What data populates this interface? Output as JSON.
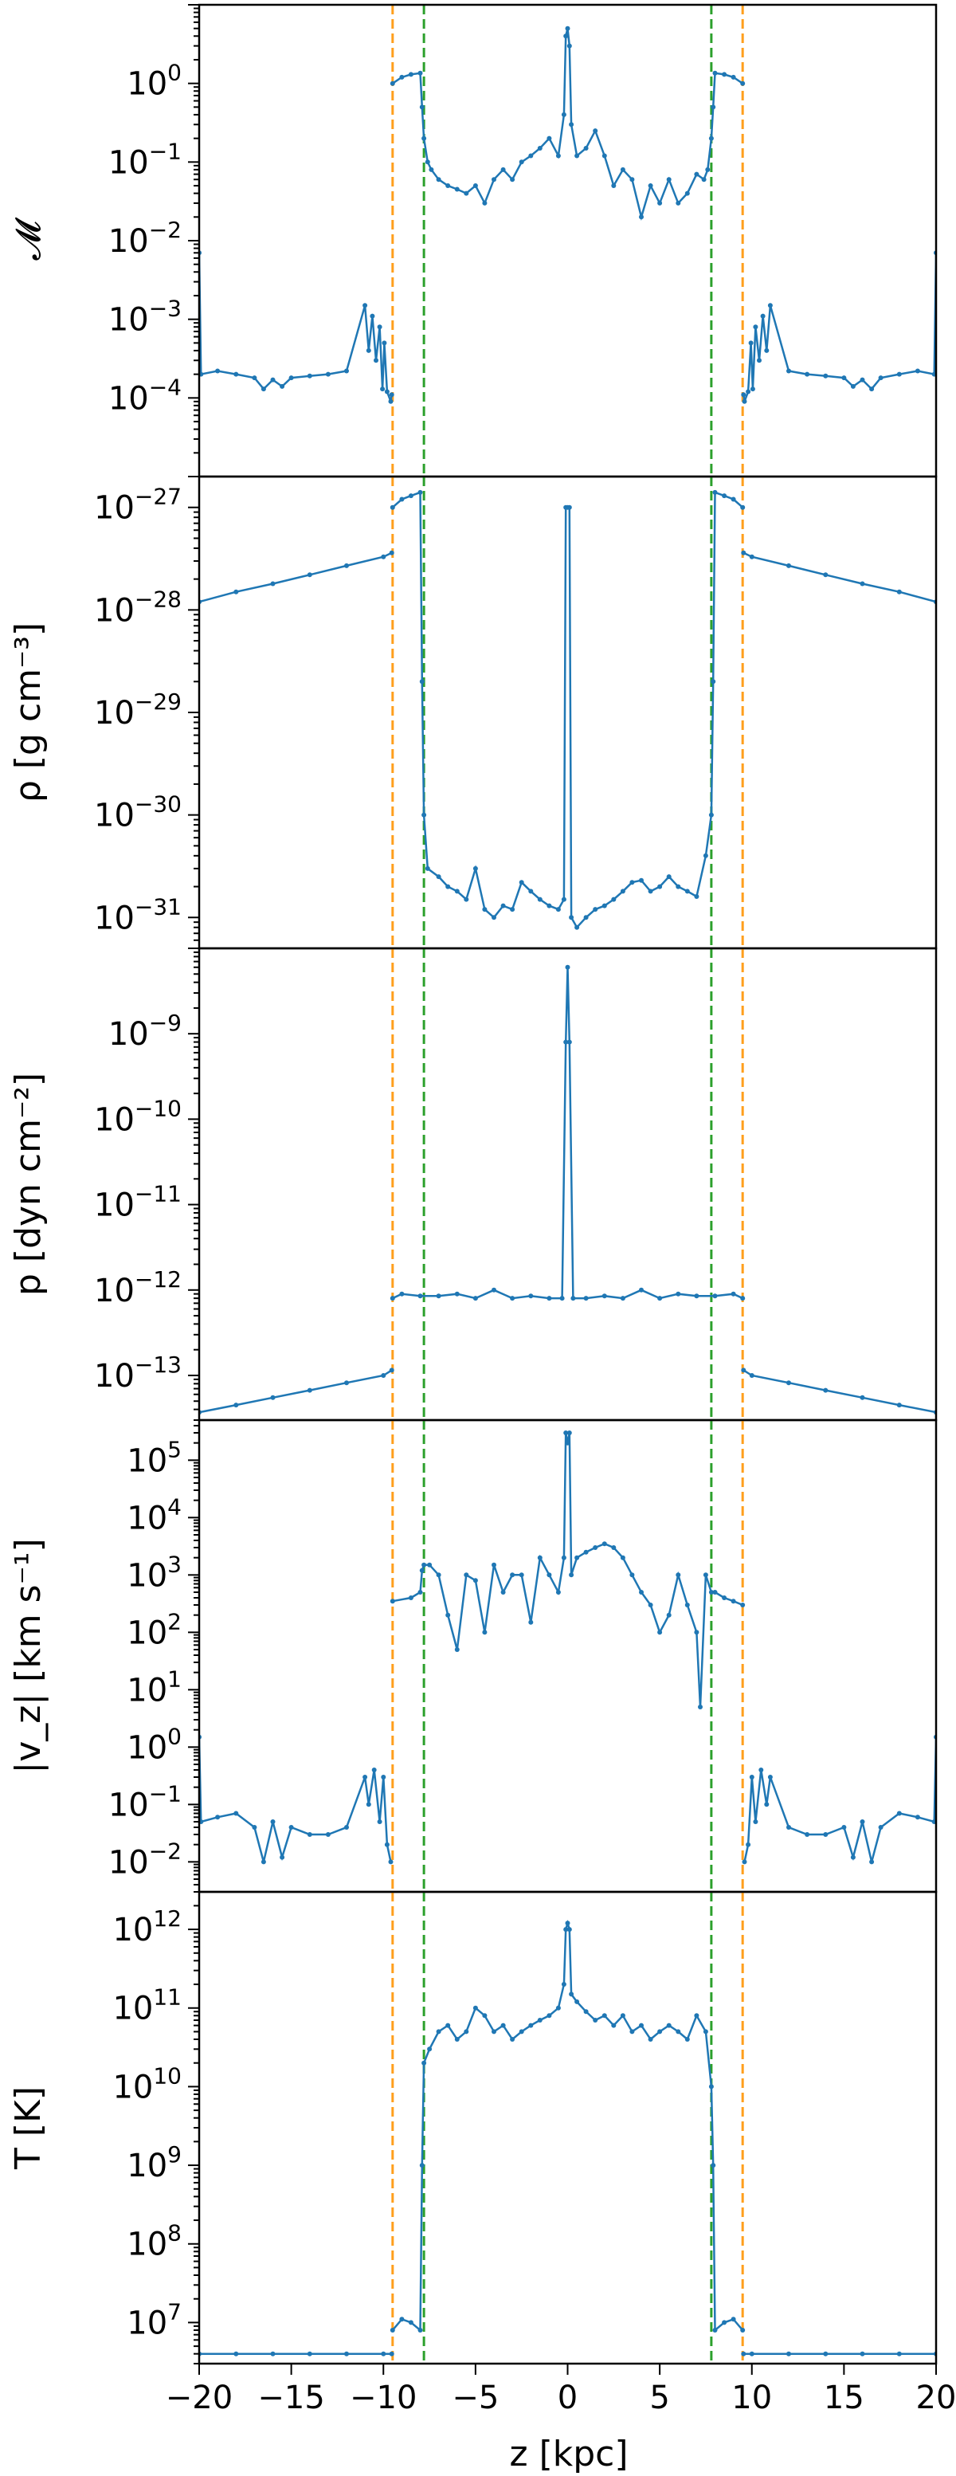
{
  "chart_data": {
    "type": "line",
    "layout": "5 vertically stacked panels sharing x axis",
    "xlabel": "z [kpc]",
    "xlim": [
      -20,
      20
    ],
    "x_ticks": [
      -20,
      -15,
      -10,
      -5,
      0,
      5,
      10,
      15,
      20
    ],
    "x_tick_labels": [
      "−20",
      "−15",
      "−10",
      "−5",
      "0",
      "5",
      "10",
      "15",
      "20"
    ],
    "line_color": "#1f77b4",
    "markers": "small dots",
    "vlines": [
      {
        "x": -9.5,
        "color": "#ff9f1c",
        "style": "dashed"
      },
      {
        "x": -7.8,
        "color": "#2ca02c",
        "style": "dashed"
      },
      {
        "x": 7.8,
        "color": "#2ca02c",
        "style": "dashed"
      },
      {
        "x": 9.5,
        "color": "#ff9f1c",
        "style": "dashed"
      }
    ],
    "panels": [
      {
        "ylabel": "𝓜",
        "yscale": "log",
        "ylim": [
          1e-05,
          10
        ],
        "y_tick_exps": [
          "0",
          "-1",
          "-2",
          "-3",
          "-4"
        ],
        "y_tick_values": [
          1,
          0.1,
          0.01,
          0.001,
          0.0001
        ],
        "series": [
          {
            "x": [
              -20,
              -19.9,
              -19,
              -18,
              -17,
              -16.5,
              -16,
              -15.5,
              -15,
              -14,
              -13,
              -12,
              -11,
              -10.8,
              -10.6,
              -10.4,
              -10.2,
              -10.05,
              -9.95,
              -9.8,
              -9.6,
              -9.55
            ],
            "y": [
              0.007,
              0.0002,
              0.00022,
              0.0002,
              0.00018,
              0.00013,
              0.00017,
              0.00014,
              0.00018,
              0.00019,
              0.0002,
              0.00022,
              0.0015,
              0.0004,
              0.0011,
              0.0003,
              0.0008,
              0.00013,
              0.0005,
              0.00012,
              9e-05,
              0.00011
            ]
          },
          {
            "x": [
              -9.5,
              -9.0,
              -8.5,
              -8.0,
              -7.9,
              -7.8,
              -7.6,
              -7.4,
              -7,
              -6.5,
              -6,
              -5.5,
              -5,
              -4.5,
              -4,
              -3.5,
              -3,
              -2.5,
              -2,
              -1.5,
              -1,
              -0.5,
              -0.2,
              -0.1,
              0,
              0.1,
              0.2,
              0.5,
              1,
              1.5,
              2,
              2.5,
              3,
              3.5,
              4,
              4.5,
              5,
              5.5,
              6,
              6.5,
              7,
              7.4,
              7.6,
              7.8,
              7.9,
              8.0,
              8.5,
              9.0,
              9.5
            ],
            "y": [
              1.0,
              1.2,
              1.3,
              1.35,
              0.5,
              0.2,
              0.1,
              0.08,
              0.06,
              0.05,
              0.045,
              0.04,
              0.05,
              0.03,
              0.06,
              0.08,
              0.06,
              0.1,
              0.12,
              0.15,
              0.2,
              0.12,
              0.4,
              4.0,
              5.0,
              3.0,
              0.3,
              0.12,
              0.15,
              0.25,
              0.12,
              0.05,
              0.08,
              0.06,
              0.02,
              0.05,
              0.03,
              0.06,
              0.03,
              0.04,
              0.07,
              0.06,
              0.08,
              0.2,
              0.5,
              1.35,
              1.3,
              1.2,
              1.0
            ]
          },
          {
            "x": [
              9.55,
              9.6,
              9.8,
              9.95,
              10.05,
              10.2,
              10.4,
              10.6,
              10.8,
              11,
              12,
              13,
              14,
              15,
              15.5,
              16,
              16.5,
              17,
              18,
              19,
              19.9,
              20
            ],
            "y": [
              0.00011,
              9e-05,
              0.00012,
              0.0005,
              0.00013,
              0.0008,
              0.0003,
              0.0011,
              0.0004,
              0.0015,
              0.00022,
              0.0002,
              0.00019,
              0.00018,
              0.00014,
              0.00017,
              0.00013,
              0.00018,
              0.0002,
              0.00022,
              0.0002,
              0.007
            ]
          }
        ]
      },
      {
        "ylabel": "ρ [g cm⁻³]",
        "yscale": "log",
        "ylim": [
          5e-32,
          2e-27
        ],
        "y_tick_exps": [
          "-27",
          "-28",
          "-29",
          "-30",
          "-31"
        ],
        "y_tick_values": [
          1e-27,
          1e-28,
          1e-29,
          1e-30,
          1e-31
        ],
        "series": [
          {
            "x": [
              -20,
              -18,
              -16,
              -14,
              -12,
              -10,
              -9.55
            ],
            "y": [
              1.2e-28,
              1.5e-28,
              1.8e-28,
              2.2e-28,
              2.7e-28,
              3.3e-28,
              3.6e-28
            ]
          },
          {
            "x": [
              -9.5,
              -9,
              -8.5,
              -8.0,
              -7.9,
              -7.8,
              -7.6,
              -7,
              -6.5,
              -6,
              -5.5,
              -5,
              -4.5,
              -4,
              -3.5,
              -3,
              -2.5,
              -2,
              -1.5,
              -1,
              -0.5,
              -0.2,
              -0.1,
              0,
              0.1,
              0.2,
              0.5,
              1,
              1.5,
              2,
              2.5,
              3,
              3.5,
              4,
              4.5,
              5,
              5.5,
              6,
              6.5,
              7,
              7.5,
              7.8,
              7.9,
              8.0,
              8.5,
              9,
              9.5
            ],
            "y": [
              1e-27,
              1.2e-27,
              1.3e-27,
              1.4e-27,
              2e-29,
              1e-30,
              3e-31,
              2.5e-31,
              2e-31,
              1.8e-31,
              1.5e-31,
              3e-31,
              1.2e-31,
              1e-31,
              1.3e-31,
              1.2e-31,
              2.2e-31,
              1.8e-31,
              1.5e-31,
              1.3e-31,
              1.2e-31,
              1.5e-31,
              1e-27,
              1e-27,
              1e-27,
              1e-31,
              8e-32,
              1e-31,
              1.2e-31,
              1.3e-31,
              1.5e-31,
              1.8e-31,
              2.2e-31,
              2.3e-31,
              1.8e-31,
              2e-31,
              2.5e-31,
              2e-31,
              1.8e-31,
              1.6e-31,
              4e-31,
              1e-30,
              2e-29,
              1.4e-27,
              1.3e-27,
              1.2e-27,
              1e-27
            ]
          },
          {
            "x": [
              9.55,
              10,
              12,
              14,
              16,
              18,
              20
            ],
            "y": [
              3.6e-28,
              3.3e-28,
              2.7e-28,
              2.2e-28,
              1.8e-28,
              1.5e-28,
              1.2e-28
            ]
          }
        ]
      },
      {
        "ylabel": "p [dyn cm⁻²]",
        "yscale": "log",
        "ylim": [
          3e-14,
          1e-08
        ],
        "y_tick_exps": [
          "-9",
          "-10",
          "-11",
          "-12",
          "-13"
        ],
        "y_tick_values": [
          1e-09,
          1e-10,
          1e-11,
          1e-12,
          1e-13
        ],
        "series": [
          {
            "x": [
              -20,
              -18,
              -16,
              -14,
              -12,
              -10,
              -9.55
            ],
            "y": [
              3.7e-14,
              4.5e-14,
              5.5e-14,
              6.7e-14,
              8.2e-14,
              1e-13,
              1.15e-13
            ]
          },
          {
            "x": [
              -9.5,
              -9,
              -8,
              -7,
              -6,
              -5,
              -4,
              -3,
              -2,
              -1,
              -0.3,
              -0.1,
              0,
              0.1,
              0.3,
              1,
              2,
              3,
              4,
              5,
              6,
              7,
              8,
              9,
              9.5
            ],
            "y": [
              8e-13,
              9e-13,
              8.5e-13,
              8.5e-13,
              9e-13,
              8e-13,
              1e-12,
              8e-13,
              8.5e-13,
              8e-13,
              8e-13,
              8e-10,
              6e-09,
              8e-10,
              8e-13,
              8e-13,
              8.5e-13,
              8e-13,
              1e-12,
              8e-13,
              9e-13,
              8.5e-13,
              8.5e-13,
              9e-13,
              8e-13
            ]
          },
          {
            "x": [
              9.55,
              10,
              12,
              14,
              16,
              18,
              20
            ],
            "y": [
              1.15e-13,
              1e-13,
              8.2e-14,
              6.7e-14,
              5.5e-14,
              4.5e-14,
              3.7e-14
            ]
          }
        ]
      },
      {
        "ylabel": "|v_z| [km s⁻¹]",
        "yscale": "log",
        "ylim": [
          0.003,
          500000.0
        ],
        "y_tick_exps": [
          "5",
          "4",
          "3",
          "2",
          "1",
          "0",
          "-1",
          "-2"
        ],
        "y_tick_values": [
          100000,
          10000,
          1000,
          100,
          10,
          1,
          0.1,
          0.01
        ],
        "series": [
          {
            "x": [
              -20,
              -19.9,
              -19,
              -18,
              -17,
              -16.5,
              -16,
              -15.5,
              -15,
              -14,
              -13,
              -12,
              -11,
              -10.8,
              -10.5,
              -10.2,
              -10,
              -9.8,
              -9.6
            ],
            "y": [
              1.5,
              0.05,
              0.06,
              0.07,
              0.04,
              0.01,
              0.05,
              0.012,
              0.04,
              0.03,
              0.03,
              0.04,
              0.3,
              0.1,
              0.4,
              0.05,
              0.3,
              0.02,
              0.01
            ]
          },
          {
            "x": [
              -9.5,
              -8.5,
              -8,
              -7.9,
              -7.8,
              -7.5,
              -7,
              -6.5,
              -6,
              -5.5,
              -5,
              -4.5,
              -4,
              -3.5,
              -3,
              -2.5,
              -2,
              -1.5,
              -1,
              -0.5,
              -0.2,
              -0.1,
              0,
              0.1,
              0.2,
              0.5,
              1,
              1.5,
              2,
              2.5,
              3,
              3.5,
              4,
              4.5,
              5,
              5.5,
              6,
              6.5,
              7,
              7.2,
              7.5,
              7.8,
              8,
              8.5,
              9,
              9.5
            ],
            "y": [
              350,
              400,
              500,
              1200,
              1500,
              1500,
              1000,
              200,
              50,
              1000,
              800,
              100,
              1500,
              500,
              1000,
              1000,
              150,
              2000,
              1000,
              500,
              2000,
              300000,
              200000,
              300000,
              1000,
              2000,
              2500,
              3000,
              3500,
              3000,
              2000,
              1000,
              500,
              300,
              100,
              200,
              1000,
              300,
              100,
              5,
              1000,
              500,
              500,
              400,
              350,
              300
            ]
          },
          {
            "x": [
              9.6,
              9.8,
              10,
              10.2,
              10.5,
              10.8,
              11,
              12,
              13,
              14,
              15,
              15.5,
              16,
              16.5,
              17,
              18,
              19,
              19.9,
              20
            ],
            "y": [
              0.01,
              0.02,
              0.3,
              0.05,
              0.4,
              0.1,
              0.3,
              0.04,
              0.03,
              0.03,
              0.04,
              0.012,
              0.05,
              0.01,
              0.04,
              0.07,
              0.06,
              0.05,
              1.5
            ]
          }
        ]
      },
      {
        "ylabel": "T [K]",
        "yscale": "log",
        "ylim": [
          3000000.0,
          3000000000000.0
        ],
        "y_tick_exps": [
          "12",
          "11",
          "10",
          "9",
          "8",
          "7"
        ],
        "y_tick_values": [
          1000000000000.0,
          100000000000.0,
          10000000000.0,
          1000000000.0,
          100000000.0,
          10000000.0
        ],
        "series": [
          {
            "x": [
              -20,
              -18,
              -16,
              -14,
              -12,
              -10,
              -9.55
            ],
            "y": [
              4000000.0,
              4000000.0,
              4000000.0,
              4000000.0,
              4000000.0,
              4000000.0,
              4000000.0
            ]
          },
          {
            "x": [
              -9.5,
              -9,
              -8.5,
              -8,
              -7.9,
              -7.8,
              -7.5,
              -7,
              -6.5,
              -6,
              -5.5,
              -5,
              -4.5,
              -4,
              -3.5,
              -3,
              -2.5,
              -2,
              -1.5,
              -1,
              -0.5,
              -0.2,
              -0.1,
              0,
              0.1,
              0.2,
              0.5,
              1,
              1.5,
              2,
              2.5,
              3,
              3.5,
              4,
              4.5,
              5,
              5.5,
              6,
              6.5,
              7,
              7.5,
              7.8,
              7.9,
              8,
              8.5,
              9,
              9.5
            ],
            "y": [
              8000000.0,
              11000000.0,
              10000000.0,
              8000000.0,
              1000000000.0,
              20000000000.0,
              30000000000.0,
              50000000000.0,
              60000000000.0,
              40000000000.0,
              50000000000.0,
              100000000000.0,
              80000000000.0,
              50000000000.0,
              60000000000.0,
              40000000000.0,
              50000000000.0,
              60000000000.0,
              70000000000.0,
              80000000000.0,
              100000000000.0,
              200000000000.0,
              1000000000000.0,
              1200000000000.0,
              1000000000000.0,
              150000000000.0,
              120000000000.0,
              90000000000.0,
              70000000000.0,
              80000000000.0,
              60000000000.0,
              80000000000.0,
              50000000000.0,
              60000000000.0,
              40000000000.0,
              50000000000.0,
              60000000000.0,
              50000000000.0,
              40000000000.0,
              80000000000.0,
              50000000000.0,
              10000000000.0,
              1000000000.0,
              8000000.0,
              10000000.0,
              11000000.0,
              8000000.0
            ]
          },
          {
            "x": [
              9.55,
              10,
              12,
              14,
              16,
              18,
              20
            ],
            "y": [
              4000000.0,
              4000000.0,
              4000000.0,
              4000000.0,
              4000000.0,
              4000000.0,
              4000000.0
            ]
          }
        ]
      }
    ]
  }
}
